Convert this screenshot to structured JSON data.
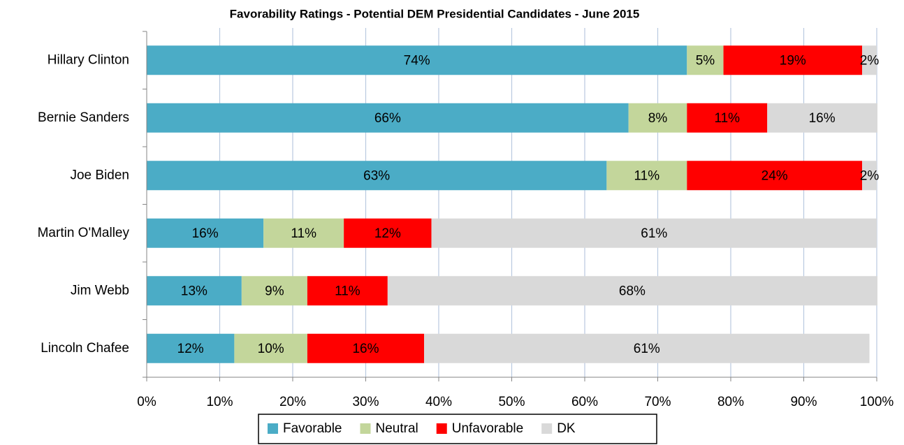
{
  "chart_data": {
    "type": "stacked_barh",
    "title": "Favorability Ratings - Potential DEM Presidential Candidates - June 2015",
    "categories": [
      "Hillary Clinton",
      "Bernie Sanders",
      "Joe Biden",
      "Martin O'Malley",
      "Jim Webb",
      "Lincoln Chafee"
    ],
    "series": [
      {
        "name": "Favorable",
        "color": "#4bacc6",
        "values": [
          74,
          66,
          63,
          16,
          13,
          12
        ],
        "value_labels": [
          "74%",
          "66%",
          "63%",
          "16%",
          "13%",
          "12%"
        ]
      },
      {
        "name": "Neutral",
        "color": "#c3d69b",
        "values": [
          5,
          8,
          11,
          11,
          9,
          10
        ],
        "value_labels": [
          "5%",
          "8%",
          "11%",
          "11%",
          "9%",
          "10%"
        ]
      },
      {
        "name": "Unfavorable",
        "color": "#ff0000",
        "values": [
          19,
          11,
          24,
          12,
          11,
          16
        ],
        "value_labels": [
          "19%",
          "11%",
          "24%",
          "12%",
          "11%",
          "16%"
        ]
      },
      {
        "name": "DK",
        "color": "#d9d9d9",
        "values": [
          2,
          16,
          2,
          61,
          68,
          61
        ],
        "value_labels": [
          "2%",
          "16%",
          "2%",
          "61%",
          "68%",
          "61%"
        ]
      }
    ],
    "xlim": [
      0,
      100
    ],
    "xticks": [
      {
        "value": 0,
        "label": "0%"
      },
      {
        "value": 10,
        "label": "10%"
      },
      {
        "value": 20,
        "label": "20%"
      },
      {
        "value": 30,
        "label": "30%"
      },
      {
        "value": 40,
        "label": "40%"
      },
      {
        "value": 50,
        "label": "50%"
      },
      {
        "value": 60,
        "label": "60%"
      },
      {
        "value": 70,
        "label": "70%"
      },
      {
        "value": 80,
        "label": "80%"
      },
      {
        "value": 90,
        "label": "90%"
      },
      {
        "value": 100,
        "label": "100%"
      }
    ],
    "grid": true,
    "legend": "bottom"
  }
}
